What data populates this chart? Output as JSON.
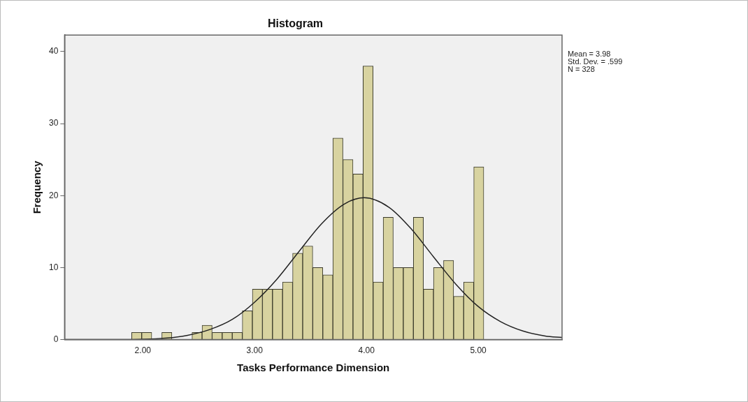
{
  "chart_data": {
    "type": "histogram",
    "title": "Histogram",
    "xlabel": "Tasks Performance Dimension",
    "ylabel": "Frequency",
    "bins": [
      1.9,
      1.99,
      2.08,
      2.17,
      2.26,
      2.35,
      2.44,
      2.53,
      2.62,
      2.71,
      2.8,
      2.89,
      2.98,
      3.07,
      3.16,
      3.25,
      3.34,
      3.43,
      3.52,
      3.61,
      3.7,
      3.79,
      3.88,
      3.97,
      4.06,
      4.15,
      4.24,
      4.33,
      4.42,
      4.51,
      4.6,
      4.69,
      4.78,
      4.87,
      4.96,
      5.05
    ],
    "values": [
      1,
      1,
      0,
      1,
      0,
      0,
      1,
      2,
      1,
      1,
      1,
      4,
      7,
      7,
      7,
      8,
      12,
      13,
      10,
      9,
      28,
      25,
      23,
      38,
      8,
      17,
      10,
      10,
      17,
      7,
      10,
      11,
      6,
      8,
      24
    ],
    "color": "#d8d3a0",
    "series": [
      {
        "type": "line",
        "color": "#222222",
        "x": [
          1.3,
          1.8,
          2.2,
          2.4,
          2.6,
          2.8,
          3.0,
          3.2,
          3.4,
          3.6,
          3.8,
          3.98,
          4.2,
          4.4,
          4.6,
          4.8,
          5.0,
          5.2,
          5.4,
          5.6,
          5.75
        ],
        "values": [
          0,
          0,
          0.2,
          0.6,
          1.4,
          2.8,
          5.2,
          8.4,
          12.3,
          16.1,
          18.8,
          19.7,
          18.4,
          15.4,
          11.5,
          7.7,
          4.6,
          2.5,
          1.2,
          0.5,
          0.3
        ]
      }
    ],
    "xlim": [
      1.3,
      5.75
    ],
    "xticks": [
      {
        "value": 2,
        "label": "2.00"
      },
      {
        "value": 3,
        "label": "3.00"
      },
      {
        "value": 4,
        "label": "4.00"
      },
      {
        "value": 5,
        "label": "5.00"
      }
    ],
    "ylim": [
      0,
      42.3
    ],
    "yticks": [
      0,
      10,
      20,
      30,
      40
    ],
    "grid": false,
    "legend": false,
    "annotations": [
      "Mean = 3.98",
      "Std. Dev. = .599",
      "N = 328"
    ]
  }
}
